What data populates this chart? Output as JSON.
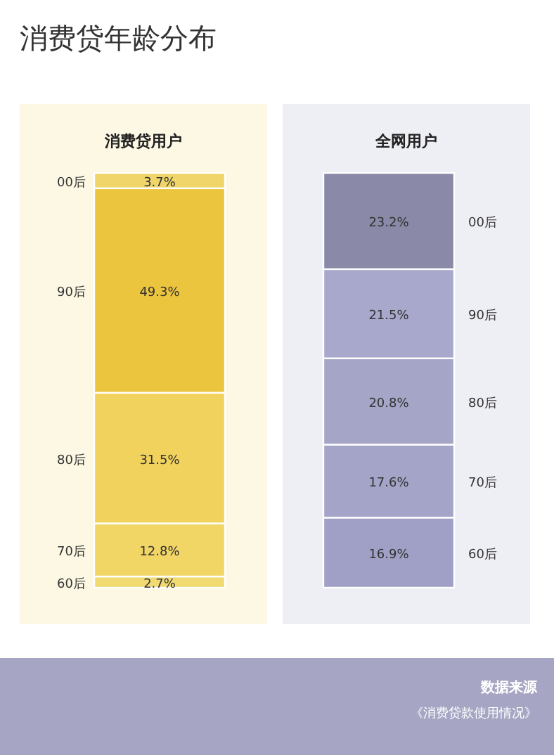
{
  "chart_data": [
    {
      "type": "bar",
      "stacked": true,
      "title": "消费贷年龄分布",
      "subtitle": "消费贷用户",
      "categories": [
        null
      ],
      "data_labels": false,
      "series": [
        {
          "name": "60后",
          "color": "#f2da72",
          "values": [
            2.7
          ],
          "value_labels": [
            "2.7%"
          ]
        },
        {
          "name": "70后",
          "color": "#f1d565",
          "values": [
            12.8
          ],
          "value_labels": [
            "12.8%"
          ]
        },
        {
          "name": "80后",
          "color": "#f0d25c",
          "values": [
            31.5
          ],
          "value_labels": [
            "31.5%"
          ]
        },
        {
          "name": "90后",
          "color": "#ecc53f",
          "values": [
            49.3
          ],
          "value_labels": [
            "49.3%"
          ]
        },
        {
          "name": "00后",
          "color": "#f0d56a",
          "values": [
            3.7
          ],
          "value_labels": [
            "3.7%"
          ]
        }
      ]
    },
    {
      "type": "bar",
      "stacked": true,
      "title": "全网用户",
      "categories": [
        null
      ],
      "annotations": [
        "数据来源",
        "《消费贷款使用情况》"
      ],
      "series": [
        {
          "name": "60后",
          "color": "#a0a0c6",
          "values": [
            16.9
          ],
          "value_labels": [
            "16.9%"
          ]
        },
        {
          "name": "70后",
          "color": "#a4a4c9",
          "values": [
            17.6
          ],
          "value_labels": [
            "17.6%"
          ]
        },
        {
          "name": "80后",
          "color": "#a5a5c8",
          "values": [
            20.8
          ],
          "value_labels": [
            "20.8%"
          ]
        },
        {
          "name": "90后",
          "color": "#a8a8cc",
          "values": [
            21.5
          ],
          "value_labels": [
            "21.5%"
          ]
        },
        {
          "name": "00后",
          "color": "#8a8aa8",
          "values": [
            23.2
          ],
          "value_labels": [
            "23.2%"
          ]
        }
      ]
    }
  ]
}
